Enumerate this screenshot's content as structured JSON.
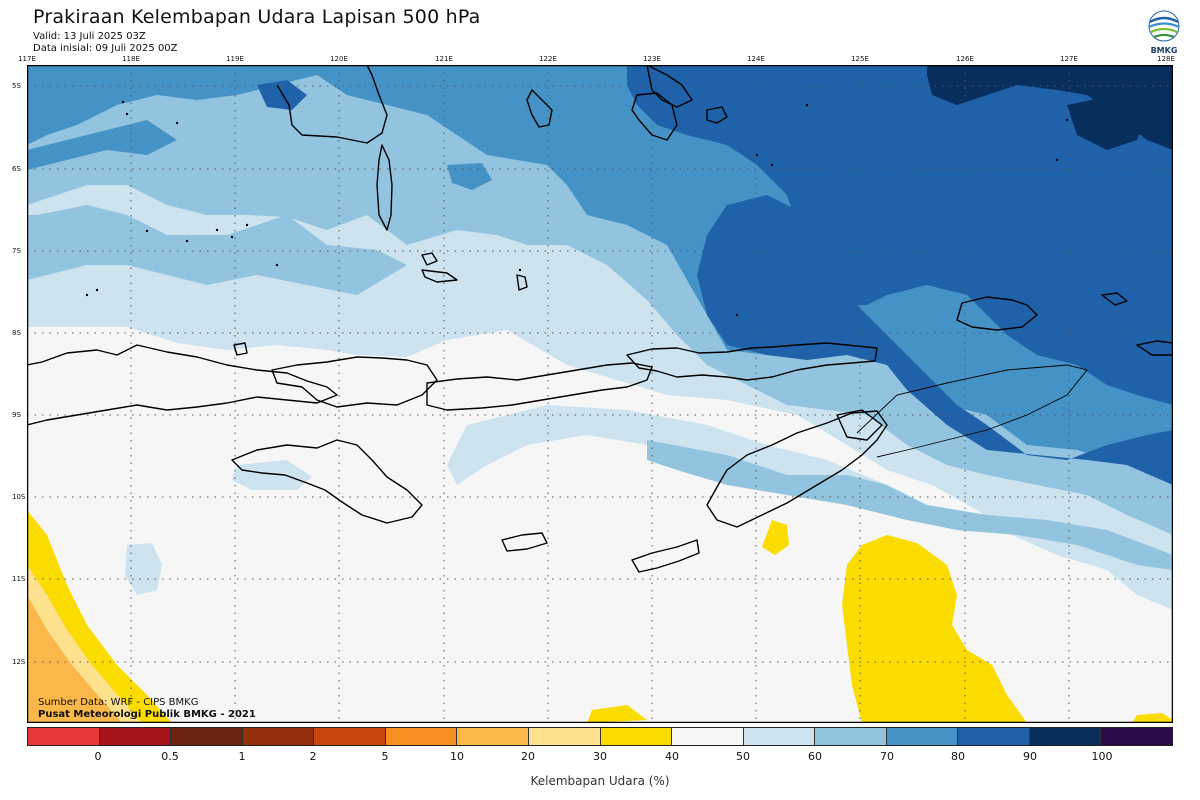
{
  "header": {
    "title": "Prakiraan Kelembapan Udara Lapisan 500 hPa",
    "valid": "Valid: 13 Juli 2025 03Z",
    "initial": "Data inisial: 09 Juli 2025 00Z"
  },
  "logo": {
    "text": "BMKG",
    "icon": "bmkg-logo-icon"
  },
  "axes": {
    "lon_labels": [
      "117E",
      "118E",
      "119E",
      "120E",
      "121E",
      "122E",
      "123E",
      "124E",
      "125E",
      "126E",
      "127E",
      "128E"
    ],
    "lat_labels": [
      "5S",
      "6S",
      "7S",
      "8S",
      "9S",
      "10S",
      "11S",
      "12S"
    ]
  },
  "credits": {
    "source": "Sumber Data: WRF - CIPS BMKG",
    "center": "Pusat Meteorologi Publik BMKG - 2021"
  },
  "colorbar": {
    "colors": [
      "#e8393a",
      "#a5151b",
      "#6b2210",
      "#93300b",
      "#c9470a",
      "#f68f20",
      "#fbb84a",
      "#fde18d",
      "#fbdc00",
      "#f6f6f6",
      "#cde3f0",
      "#93c4df",
      "#4593c6",
      "#1f62aa",
      "#082e5e",
      "#2b0b48"
    ],
    "ticks": [
      "0",
      "0.5",
      "1",
      "2",
      "5",
      "10",
      "20",
      "30",
      "40",
      "50",
      "60",
      "70",
      "80",
      "90",
      "100"
    ],
    "label": "Kelembapan Udara (%)"
  },
  "palette": {
    "ocean_white": "#f6f6f6",
    "rh_60": "#cde3f0",
    "rh_70": "#93c4df",
    "rh_80": "#4593c6",
    "rh_90": "#1f62aa",
    "rh_100": "#082e5e",
    "dry_40": "#fbdc00",
    "dry_30": "#fde18d",
    "dry_20": "#fbb84a"
  }
}
